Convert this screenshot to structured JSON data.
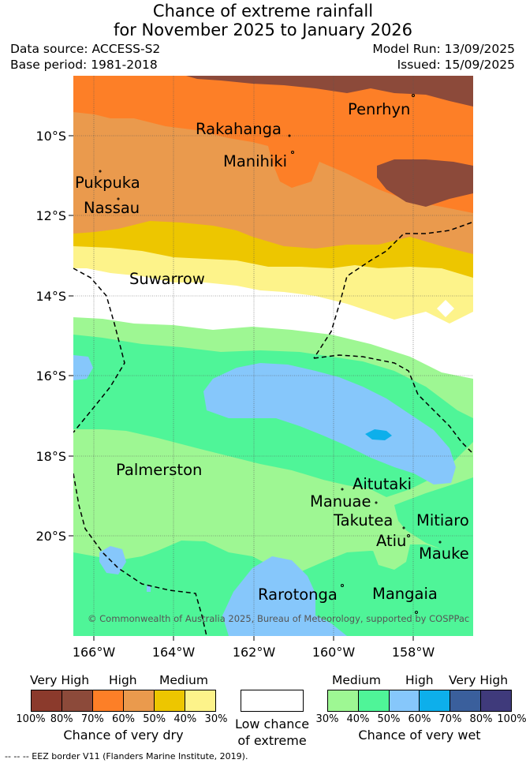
{
  "title_line1": "Chance of extreme rainfall",
  "title_line2": "for November 2025 to January 2026",
  "meta": {
    "data_source": "Data source: ACCESS-S2",
    "base_period": "Base period: 1981-2018",
    "model_run": "Model Run: 13/09/2025",
    "issued": "Issued: 15/09/2025"
  },
  "map": {
    "lat_ticks": [
      "10°S",
      "12°S",
      "14°S",
      "16°S",
      "18°S",
      "20°S"
    ],
    "lon_ticks": [
      "166°W",
      "164°W",
      "162°W",
      "160°W",
      "158°W"
    ],
    "places": [
      {
        "id": "penrhyn",
        "name": "Penrhyn"
      },
      {
        "id": "rakahanga",
        "name": "Rakahanga"
      },
      {
        "id": "manihiki",
        "name": "Manihiki"
      },
      {
        "id": "pukapuka",
        "name": "Pukpuka"
      },
      {
        "id": "nassau",
        "name": "Nassau"
      },
      {
        "id": "suwarrow",
        "name": "Suwarrow"
      },
      {
        "id": "palmerston",
        "name": "Palmerston"
      },
      {
        "id": "aitutaki",
        "name": "Aitutaki"
      },
      {
        "id": "manuae",
        "name": "Manuae"
      },
      {
        "id": "takutea",
        "name": "Takutea"
      },
      {
        "id": "mitiaro",
        "name": "Mitiaro"
      },
      {
        "id": "atiu",
        "name": "Atiu"
      },
      {
        "id": "mauke",
        "name": "Mauke"
      },
      {
        "id": "rarotonga",
        "name": "Rarotonga"
      },
      {
        "id": "mangaia",
        "name": "Mangaia"
      }
    ],
    "copyright": "© Commonwealth of Australia 2025, Bureau of Meteorology, supported by COSPPac"
  },
  "legend": {
    "dry": {
      "labels": [
        "Very High",
        "High",
        "Medium"
      ],
      "colors": [
        "#8b3a2c",
        "#8c4a3a",
        "#fd7f27",
        "#ea9a4d",
        "#edc600",
        "#fdf38a"
      ],
      "pcts": [
        "100%",
        "80%",
        "70%",
        "60%",
        "50%",
        "40%",
        "30%"
      ],
      "caption": "Chance of very dry"
    },
    "low": {
      "color": "#ffffff",
      "caption_line1": "Low chance",
      "caption_line2": "of extreme"
    },
    "wet": {
      "labels": [
        "Medium",
        "High",
        "Very High"
      ],
      "colors": [
        "#9ef793",
        "#4ff598",
        "#86c7fb",
        "#0dafeb",
        "#3a5f9c",
        "#3f3a7b"
      ],
      "pcts": [
        "30%",
        "40%",
        "50%",
        "60%",
        "70%",
        "80%",
        "100%"
      ],
      "caption": "Chance of very wet"
    }
  },
  "footer": "--  --  -- EEZ border V11 (Flanders Marine Institute, 2019)."
}
